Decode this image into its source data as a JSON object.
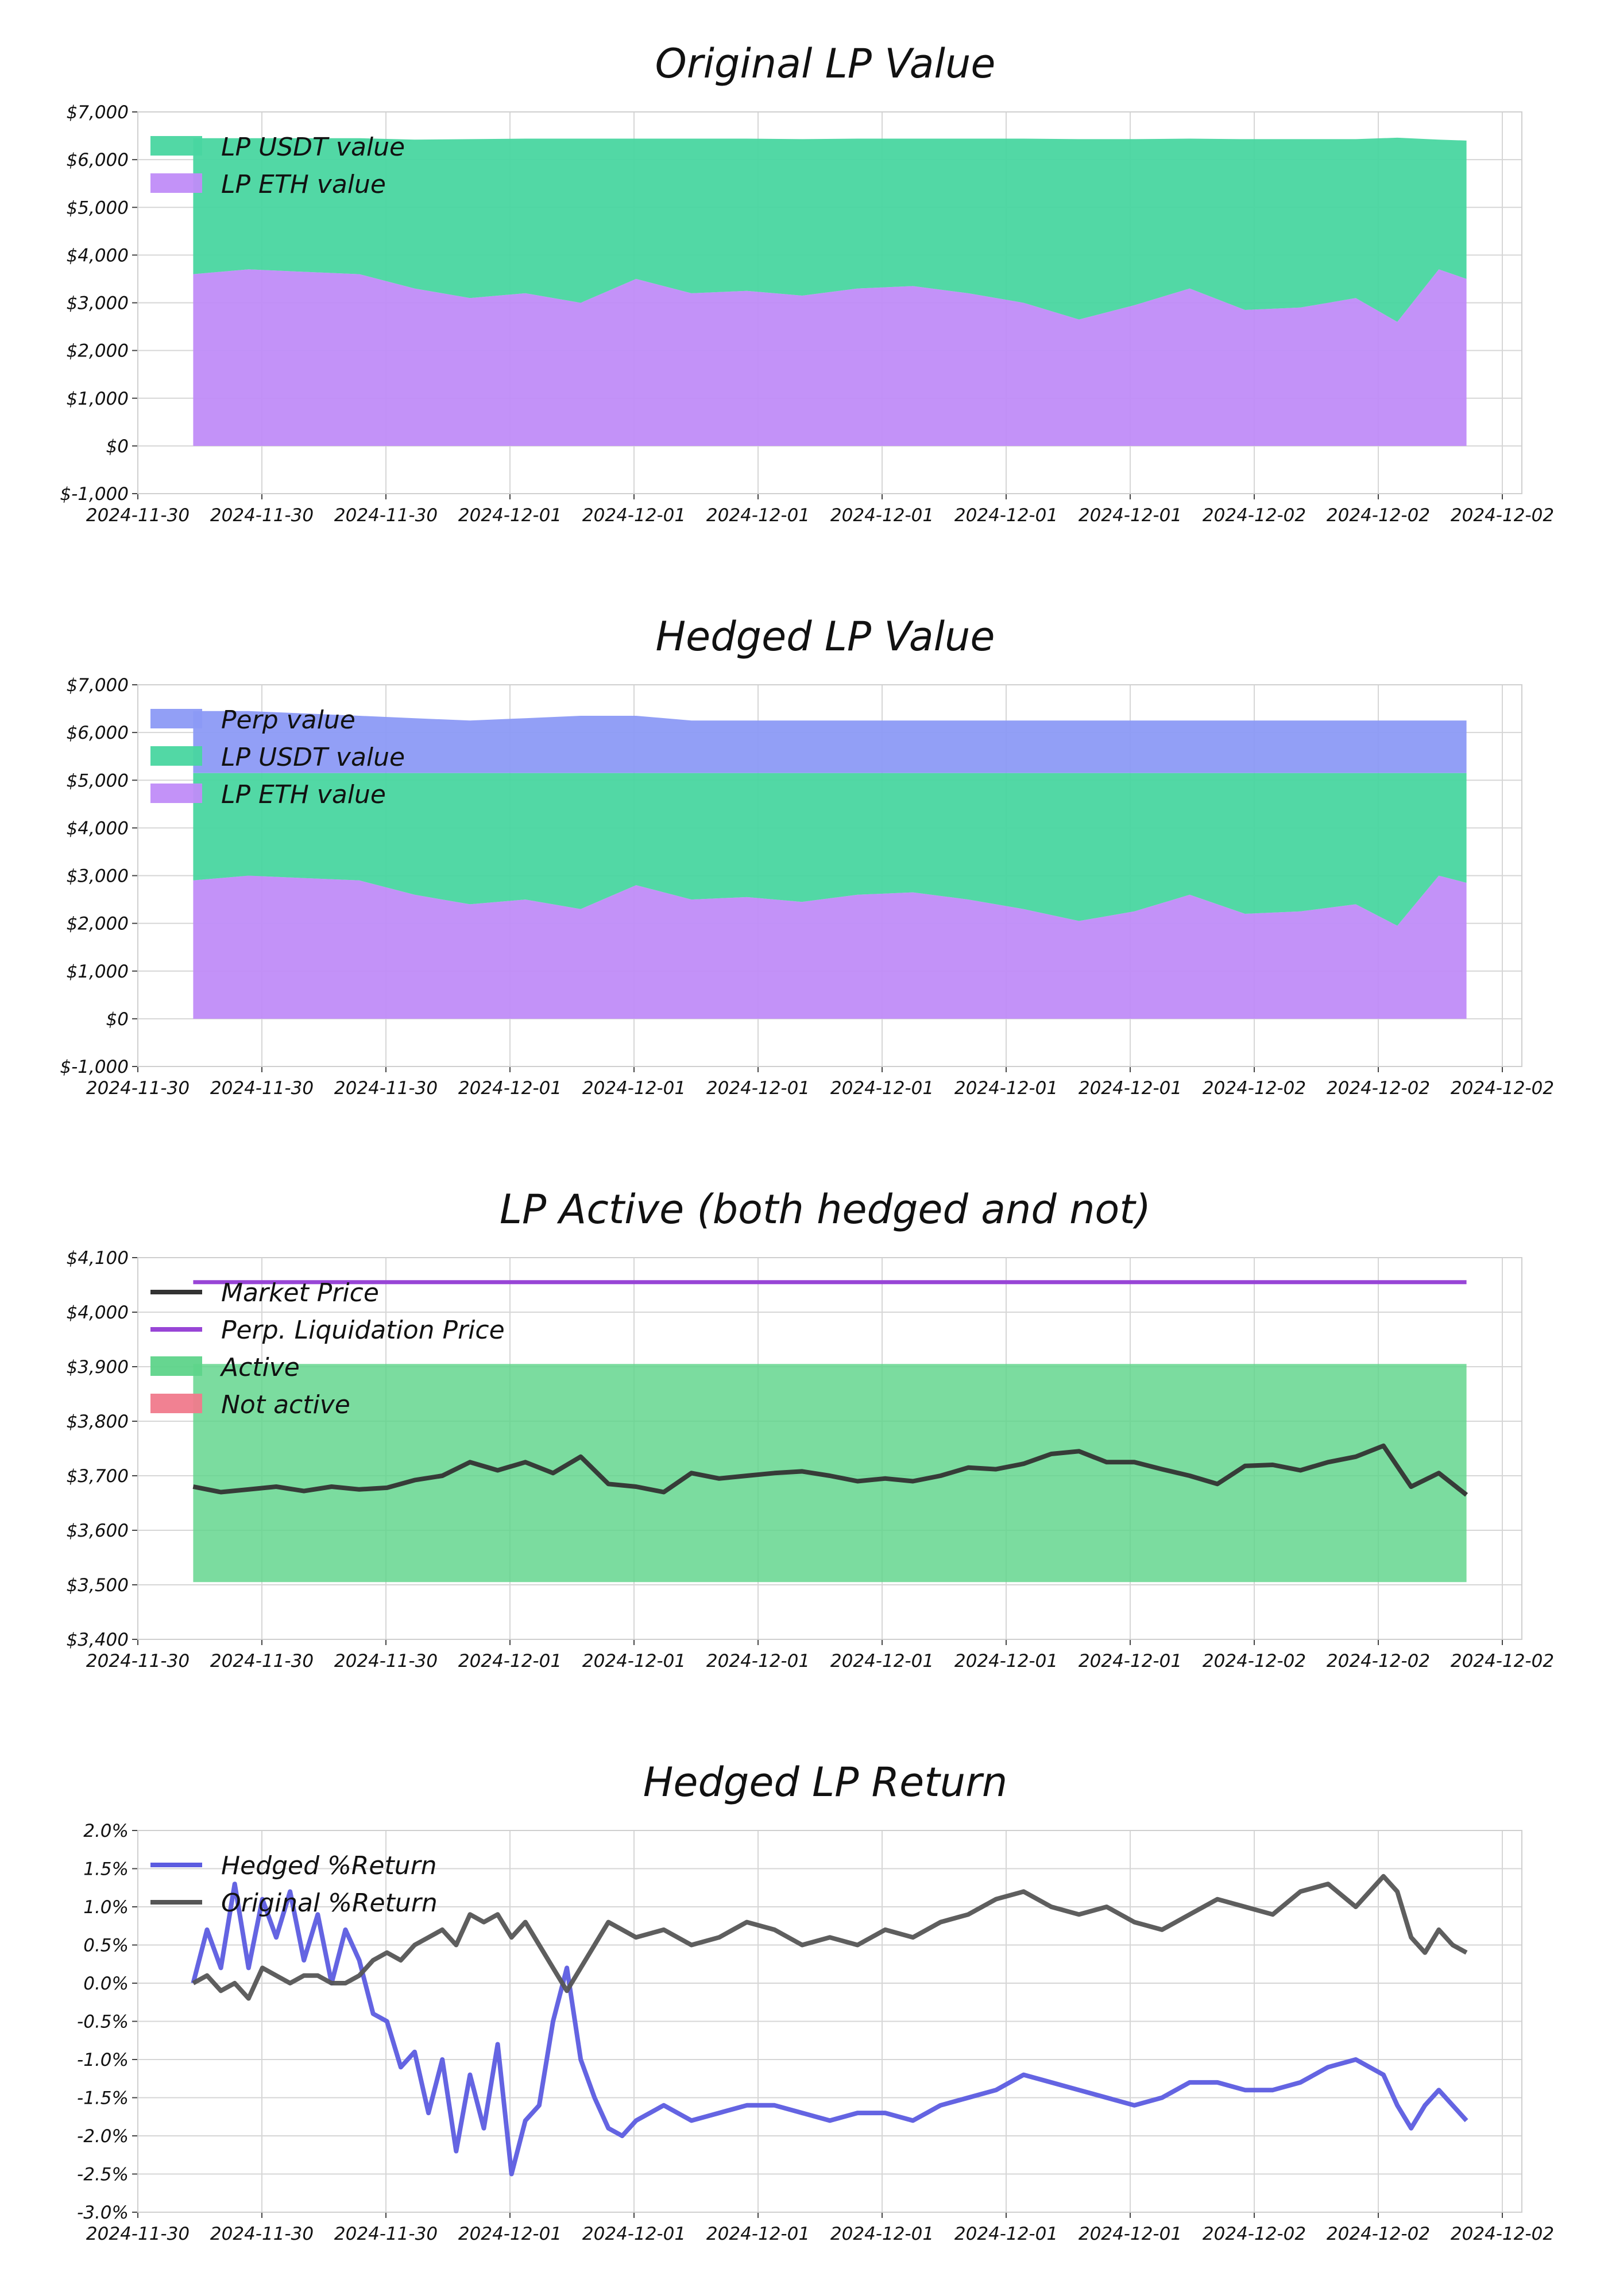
{
  "chart_data": [
    {
      "type": "area",
      "title": "Original LP Value",
      "ylim": [
        -1000,
        7000
      ],
      "yticks": [
        -1000,
        0,
        1000,
        2000,
        3000,
        4000,
        5000,
        6000,
        7000
      ],
      "ytick_labels": [
        "$-1,000",
        "$0",
        "$1,000",
        "$2,000",
        "$3,000",
        "$4,000",
        "$5,000",
        "$6,000",
        "$7,000"
      ],
      "xlim": [
        0,
        1
      ],
      "xtick_labels": [
        "2024-11-30",
        "2024-11-30",
        "2024-11-30",
        "2024-12-01",
        "2024-12-01",
        "2024-12-01",
        "2024-12-01",
        "2024-12-01",
        "2024-12-01",
        "2024-12-02",
        "2024-12-02",
        "2024-12-02"
      ],
      "grid": true,
      "legend": "top-left",
      "x": [
        0.04,
        0.08,
        0.12,
        0.16,
        0.2,
        0.24,
        0.28,
        0.32,
        0.36,
        0.4,
        0.44,
        0.48,
        0.52,
        0.56,
        0.6,
        0.64,
        0.68,
        0.72,
        0.76,
        0.8,
        0.84,
        0.88,
        0.91,
        0.94,
        0.96
      ],
      "series": [
        {
          "name": "LP ETH value",
          "color": "#c08cf8",
          "values": [
            3600,
            3700,
            3650,
            3600,
            3300,
            3100,
            3200,
            3000,
            3500,
            3200,
            3250,
            3150,
            3300,
            3350,
            3200,
            3000,
            2650,
            2950,
            3300,
            2850,
            2900,
            3100,
            2600,
            3700,
            3500
          ]
        },
        {
          "name": "LP USDT value",
          "color": "#49d6a0",
          "values": [
            2850,
            2750,
            2800,
            2850,
            3120,
            3330,
            3240,
            3440,
            2940,
            3240,
            3190,
            3280,
            3140,
            3090,
            3240,
            3440,
            3780,
            3480,
            3140,
            3580,
            3530,
            3330,
            3860,
            2720,
            2900
          ]
        }
      ]
    },
    {
      "type": "area",
      "title": "Hedged LP Value",
      "ylim": [
        -1000,
        7000
      ],
      "yticks": [
        -1000,
        0,
        1000,
        2000,
        3000,
        4000,
        5000,
        6000,
        7000
      ],
      "ytick_labels": [
        "$-1,000",
        "$0",
        "$1,000",
        "$2,000",
        "$3,000",
        "$4,000",
        "$5,000",
        "$6,000",
        "$7,000"
      ],
      "xlim": [
        0,
        1
      ],
      "xtick_labels": [
        "2024-11-30",
        "2024-11-30",
        "2024-11-30",
        "2024-12-01",
        "2024-12-01",
        "2024-12-01",
        "2024-12-01",
        "2024-12-01",
        "2024-12-01",
        "2024-12-02",
        "2024-12-02",
        "2024-12-02"
      ],
      "grid": true,
      "legend": "top-left",
      "x": [
        0.04,
        0.08,
        0.12,
        0.16,
        0.2,
        0.24,
        0.28,
        0.32,
        0.36,
        0.4,
        0.44,
        0.48,
        0.52,
        0.56,
        0.6,
        0.64,
        0.68,
        0.72,
        0.76,
        0.8,
        0.84,
        0.88,
        0.91,
        0.94,
        0.96
      ],
      "series": [
        {
          "name": "LP ETH value",
          "color": "#c08cf8",
          "values": [
            2900,
            3000,
            2950,
            2900,
            2600,
            2400,
            2500,
            2300,
            2800,
            2500,
            2550,
            2450,
            2600,
            2650,
            2500,
            2300,
            2050,
            2250,
            2600,
            2200,
            2250,
            2400,
            1950,
            3000,
            2850
          ]
        },
        {
          "name": "LP USDT value",
          "color": "#49d6a0",
          "values": [
            2250,
            2150,
            2200,
            2250,
            2550,
            2750,
            2650,
            2850,
            2350,
            2650,
            2600,
            2700,
            2550,
            2500,
            2650,
            2850,
            3100,
            2900,
            2550,
            2950,
            2900,
            2750,
            3200,
            2150,
            2300
          ]
        },
        {
          "name": "Perp value",
          "color": "#8c9af5",
          "values": [
            1300,
            1300,
            1250,
            1200,
            1150,
            1100,
            1150,
            1200,
            1200,
            1100,
            1100,
            1100,
            1100,
            1100,
            1100,
            1100,
            1100,
            1100,
            1100,
            1100,
            1100,
            1100,
            1100,
            1100,
            1100
          ]
        }
      ]
    },
    {
      "type": "line",
      "title": "LP Active (both hedged and not)",
      "ylim": [
        3400,
        4100
      ],
      "yticks": [
        3400,
        3500,
        3600,
        3700,
        3800,
        3900,
        4000,
        4100
      ],
      "ytick_labels": [
        "$3,400",
        "$3,500",
        "$3,600",
        "$3,700",
        "$3,800",
        "$3,900",
        "$4,000",
        "$4,100"
      ],
      "xlim": [
        0,
        1
      ],
      "xtick_labels": [
        "2024-11-30",
        "2024-11-30",
        "2024-11-30",
        "2024-12-01",
        "2024-12-01",
        "2024-12-01",
        "2024-12-01",
        "2024-12-01",
        "2024-12-01",
        "2024-12-02",
        "2024-12-02",
        "2024-12-02"
      ],
      "grid": true,
      "legend": "top-left",
      "active_band": {
        "name": "Active",
        "color": "#5ed48a",
        "x_range": [
          0.04,
          0.96
        ],
        "y_range": [
          3505,
          3905
        ]
      },
      "inactive_legend": {
        "name": "Not active",
        "color": "#f07a8c"
      },
      "liquidation": {
        "name": "Perp. Liquidation Price",
        "color": "#9845d6",
        "value": 4055,
        "x_range": [
          0.04,
          0.96
        ]
      },
      "x": [
        0.04,
        0.06,
        0.08,
        0.1,
        0.12,
        0.14,
        0.16,
        0.18,
        0.2,
        0.22,
        0.24,
        0.26,
        0.28,
        0.3,
        0.32,
        0.34,
        0.36,
        0.38,
        0.4,
        0.42,
        0.44,
        0.46,
        0.48,
        0.5,
        0.52,
        0.54,
        0.56,
        0.58,
        0.6,
        0.62,
        0.64,
        0.66,
        0.68,
        0.7,
        0.72,
        0.74,
        0.76,
        0.78,
        0.8,
        0.82,
        0.84,
        0.86,
        0.88,
        0.9,
        0.92,
        0.94,
        0.96
      ],
      "series": [
        {
          "name": "Market Price",
          "color": "#333333",
          "values": [
            3680,
            3670,
            3675,
            3680,
            3672,
            3680,
            3675,
            3678,
            3692,
            3700,
            3725,
            3710,
            3725,
            3705,
            3735,
            3685,
            3680,
            3670,
            3705,
            3695,
            3700,
            3705,
            3708,
            3700,
            3690,
            3695,
            3690,
            3700,
            3715,
            3712,
            3722,
            3740,
            3745,
            3725,
            3725,
            3712,
            3700,
            3685,
            3718,
            3720,
            3710,
            3725,
            3735,
            3755,
            3680,
            3705,
            3665
          ]
        }
      ]
    },
    {
      "type": "line",
      "title": "Hedged LP Return",
      "ylim": [
        -3.0,
        2.0
      ],
      "yticks": [
        -3.0,
        -2.5,
        -2.0,
        -1.5,
        -1.0,
        -0.5,
        0.0,
        0.5,
        1.0,
        1.5,
        2.0
      ],
      "ytick_labels": [
        "-3.0%",
        "-2.5%",
        "-2.0%",
        "-1.5%",
        "-1.0%",
        "-0.5%",
        "0.0%",
        "0.5%",
        "1.0%",
        "1.5%",
        "2.0%"
      ],
      "xlim": [
        0,
        1
      ],
      "xtick_labels": [
        "2024-11-30",
        "2024-11-30",
        "2024-11-30",
        "2024-12-01",
        "2024-12-01",
        "2024-12-01",
        "2024-12-01",
        "2024-12-01",
        "2024-12-01",
        "2024-12-02",
        "2024-12-02",
        "2024-12-02"
      ],
      "grid": true,
      "legend": "top-left",
      "x": [
        0.04,
        0.05,
        0.06,
        0.07,
        0.08,
        0.09,
        0.1,
        0.11,
        0.12,
        0.13,
        0.14,
        0.15,
        0.16,
        0.17,
        0.18,
        0.19,
        0.2,
        0.21,
        0.22,
        0.23,
        0.24,
        0.25,
        0.26,
        0.27,
        0.28,
        0.29,
        0.3,
        0.31,
        0.32,
        0.33,
        0.34,
        0.35,
        0.36,
        0.38,
        0.4,
        0.42,
        0.44,
        0.46,
        0.48,
        0.5,
        0.52,
        0.54,
        0.56,
        0.58,
        0.6,
        0.62,
        0.64,
        0.66,
        0.68,
        0.7,
        0.72,
        0.74,
        0.76,
        0.78,
        0.8,
        0.82,
        0.84,
        0.86,
        0.88,
        0.9,
        0.91,
        0.92,
        0.93,
        0.94,
        0.95,
        0.96
      ],
      "series": [
        {
          "name": "Hedged %Return",
          "color": "#5c5ce0",
          "values": [
            0.0,
            0.7,
            0.2,
            1.3,
            0.2,
            1.1,
            0.6,
            1.2,
            0.3,
            0.9,
            0.0,
            0.7,
            0.3,
            -0.4,
            -0.5,
            -1.1,
            -0.9,
            -1.7,
            -1.0,
            -2.2,
            -1.2,
            -1.9,
            -0.8,
            -2.5,
            -1.8,
            -1.6,
            -0.5,
            0.2,
            -1.0,
            -1.5,
            -1.9,
            -2.0,
            -1.8,
            -1.6,
            -1.8,
            -1.7,
            -1.6,
            -1.6,
            -1.7,
            -1.8,
            -1.7,
            -1.7,
            -1.8,
            -1.6,
            -1.5,
            -1.4,
            -1.2,
            -1.3,
            -1.4,
            -1.5,
            -1.6,
            -1.5,
            -1.3,
            -1.3,
            -1.4,
            -1.4,
            -1.3,
            -1.1,
            -1.0,
            -1.2,
            -1.6,
            -1.9,
            -1.6,
            -1.4,
            -1.6,
            -1.8
          ]
        },
        {
          "name": "Original %Return",
          "color": "#555555",
          "values": [
            0.0,
            0.1,
            -0.1,
            0.0,
            -0.2,
            0.2,
            0.1,
            0.0,
            0.1,
            0.1,
            0.0,
            0.0,
            0.1,
            0.3,
            0.4,
            0.3,
            0.5,
            0.6,
            0.7,
            0.5,
            0.9,
            0.8,
            0.9,
            0.6,
            0.8,
            0.5,
            0.2,
            -0.1,
            0.2,
            0.5,
            0.8,
            0.7,
            0.6,
            0.7,
            0.5,
            0.6,
            0.8,
            0.7,
            0.5,
            0.6,
            0.5,
            0.7,
            0.6,
            0.8,
            0.9,
            1.1,
            1.2,
            1.0,
            0.9,
            1.0,
            0.8,
            0.7,
            0.9,
            1.1,
            1.0,
            0.9,
            1.2,
            1.3,
            1.0,
            1.4,
            1.2,
            0.6,
            0.4,
            0.7,
            0.5,
            0.4
          ]
        }
      ]
    }
  ]
}
